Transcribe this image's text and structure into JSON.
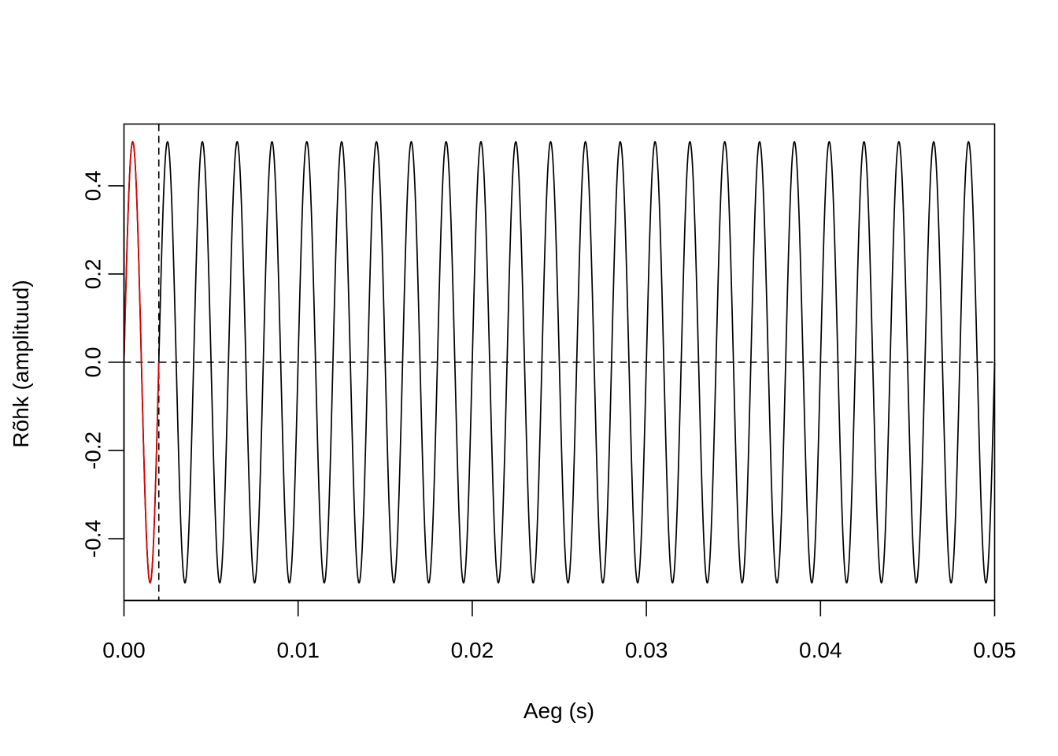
{
  "chart_data": {
    "type": "line",
    "title": "",
    "xlabel": "Aeg (s)",
    "ylabel": "Rõhk (amplituud)",
    "xlim": [
      0,
      0.05
    ],
    "ylim": [
      -0.54,
      0.54
    ],
    "grid": false,
    "x_ticks": [
      0.0,
      0.01,
      0.02,
      0.03,
      0.04,
      0.05
    ],
    "x_tick_labels": [
      "0.00",
      "0.01",
      "0.02",
      "0.03",
      "0.04",
      "0.05"
    ],
    "y_ticks": [
      -0.4,
      -0.2,
      0.0,
      0.2,
      0.4
    ],
    "y_tick_labels": [
      "-0.4",
      "-0.2",
      "0.0",
      "0.2",
      "0.4"
    ],
    "series": [
      {
        "function": "0.5*sin(2*pi*500*t)",
        "amplitude": 0.5,
        "frequency_hz": 500,
        "t_start": 0,
        "t_end": 0.05,
        "color": "#000000"
      },
      {
        "function": "0.5*sin(2*pi*500*t)",
        "amplitude": 0.5,
        "frequency_hz": 500,
        "t_start": 0,
        "t_end": 0.002,
        "color": "#DF0000"
      }
    ],
    "reference_lines": [
      {
        "orientation": "horizontal",
        "value": 0.0,
        "style": "dashed",
        "color": "#000000"
      },
      {
        "orientation": "vertical",
        "value": 0.002,
        "style": "dashed",
        "color": "#000000"
      }
    ]
  }
}
